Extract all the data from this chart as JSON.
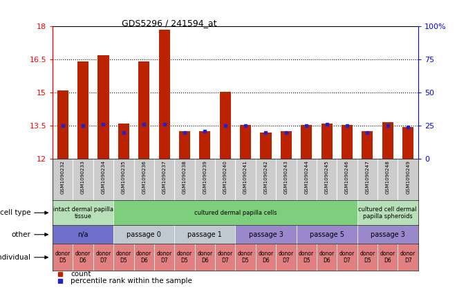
{
  "title": "GDS5296 / 241594_at",
  "samples": [
    "GSM1090232",
    "GSM1090233",
    "GSM1090234",
    "GSM1090235",
    "GSM1090236",
    "GSM1090237",
    "GSM1090238",
    "GSM1090239",
    "GSM1090240",
    "GSM1090241",
    "GSM1090242",
    "GSM1090243",
    "GSM1090244",
    "GSM1090245",
    "GSM1090246",
    "GSM1090247",
    "GSM1090248",
    "GSM1090249"
  ],
  "bar_values": [
    15.1,
    16.4,
    16.7,
    13.6,
    16.4,
    17.85,
    13.25,
    13.25,
    15.05,
    13.55,
    13.2,
    13.25,
    13.55,
    13.6,
    13.55,
    13.25,
    13.65,
    13.45
  ],
  "percentile_ranks": [
    25,
    25,
    26,
    20,
    26,
    26,
    20,
    21,
    25,
    25,
    20,
    20,
    25,
    26,
    25,
    20,
    25,
    24
  ],
  "ymin": 12,
  "ymax": 18,
  "yticks": [
    12,
    13.5,
    15,
    16.5,
    18
  ],
  "ytick_labels": [
    "12",
    "13.5",
    "15",
    "16.5",
    "18"
  ],
  "right_yticks_pct": [
    0,
    25,
    50,
    75,
    100
  ],
  "right_ytick_labels": [
    "0",
    "25",
    "50",
    "75",
    "100%"
  ],
  "dotted_lines": [
    13.5,
    15,
    16.5
  ],
  "cell_type_groups": [
    {
      "label": "intact dermal papilla\ntissue",
      "start": 0,
      "end": 3,
      "color": "#b8e0b8"
    },
    {
      "label": "cultured dermal papilla cells",
      "start": 3,
      "end": 15,
      "color": "#7dce7d"
    },
    {
      "label": "cultured cell dermal\npapilla spheroids",
      "start": 15,
      "end": 18,
      "color": "#b8e0b8"
    }
  ],
  "other_groups": [
    {
      "label": "n/a",
      "start": 0,
      "end": 3,
      "color": "#7070cc"
    },
    {
      "label": "passage 0",
      "start": 3,
      "end": 6,
      "color": "#c0c8d0"
    },
    {
      "label": "passage 1",
      "start": 6,
      "end": 9,
      "color": "#c0c8d0"
    },
    {
      "label": "passage 3",
      "start": 9,
      "end": 12,
      "color": "#9988cc"
    },
    {
      "label": "passage 5",
      "start": 12,
      "end": 15,
      "color": "#9988cc"
    },
    {
      "label": "passage 3",
      "start": 15,
      "end": 18,
      "color": "#9988cc"
    }
  ],
  "individual_groups": [
    {
      "label": "donor\nD5",
      "start": 0,
      "end": 1,
      "color": "#e08080"
    },
    {
      "label": "donor\nD6",
      "start": 1,
      "end": 2,
      "color": "#e08080"
    },
    {
      "label": "donor\nD7",
      "start": 2,
      "end": 3,
      "color": "#e08080"
    },
    {
      "label": "donor\nD5",
      "start": 3,
      "end": 4,
      "color": "#e08080"
    },
    {
      "label": "donor\nD6",
      "start": 4,
      "end": 5,
      "color": "#e08080"
    },
    {
      "label": "donor\nD7",
      "start": 5,
      "end": 6,
      "color": "#e08080"
    },
    {
      "label": "donor\nD5",
      "start": 6,
      "end": 7,
      "color": "#e08080"
    },
    {
      "label": "donor\nD6",
      "start": 7,
      "end": 8,
      "color": "#e08080"
    },
    {
      "label": "donor\nD7",
      "start": 8,
      "end": 9,
      "color": "#e08080"
    },
    {
      "label": "donor\nD5",
      "start": 9,
      "end": 10,
      "color": "#e08080"
    },
    {
      "label": "donor\nD6",
      "start": 10,
      "end": 11,
      "color": "#e08080"
    },
    {
      "label": "donor\nD7",
      "start": 11,
      "end": 12,
      "color": "#e08080"
    },
    {
      "label": "donor\nD5",
      "start": 12,
      "end": 13,
      "color": "#e08080"
    },
    {
      "label": "donor\nD6",
      "start": 13,
      "end": 14,
      "color": "#e08080"
    },
    {
      "label": "donor\nD7",
      "start": 14,
      "end": 15,
      "color": "#e08080"
    },
    {
      "label": "donor\nD5",
      "start": 15,
      "end": 16,
      "color": "#e08080"
    },
    {
      "label": "donor\nD6",
      "start": 16,
      "end": 17,
      "color": "#e08080"
    },
    {
      "label": "donor\nD7",
      "start": 17,
      "end": 18,
      "color": "#e08080"
    }
  ],
  "bar_color": "#bb2200",
  "percentile_color": "#2222cc",
  "background_color": "#ffffff",
  "plot_bg_color": "#ffffff",
  "tick_bg_color": "#cccccc",
  "row_labels": [
    "cell type",
    "other",
    "individual"
  ],
  "legend_count": "count",
  "legend_percentile": "percentile rank within the sample"
}
